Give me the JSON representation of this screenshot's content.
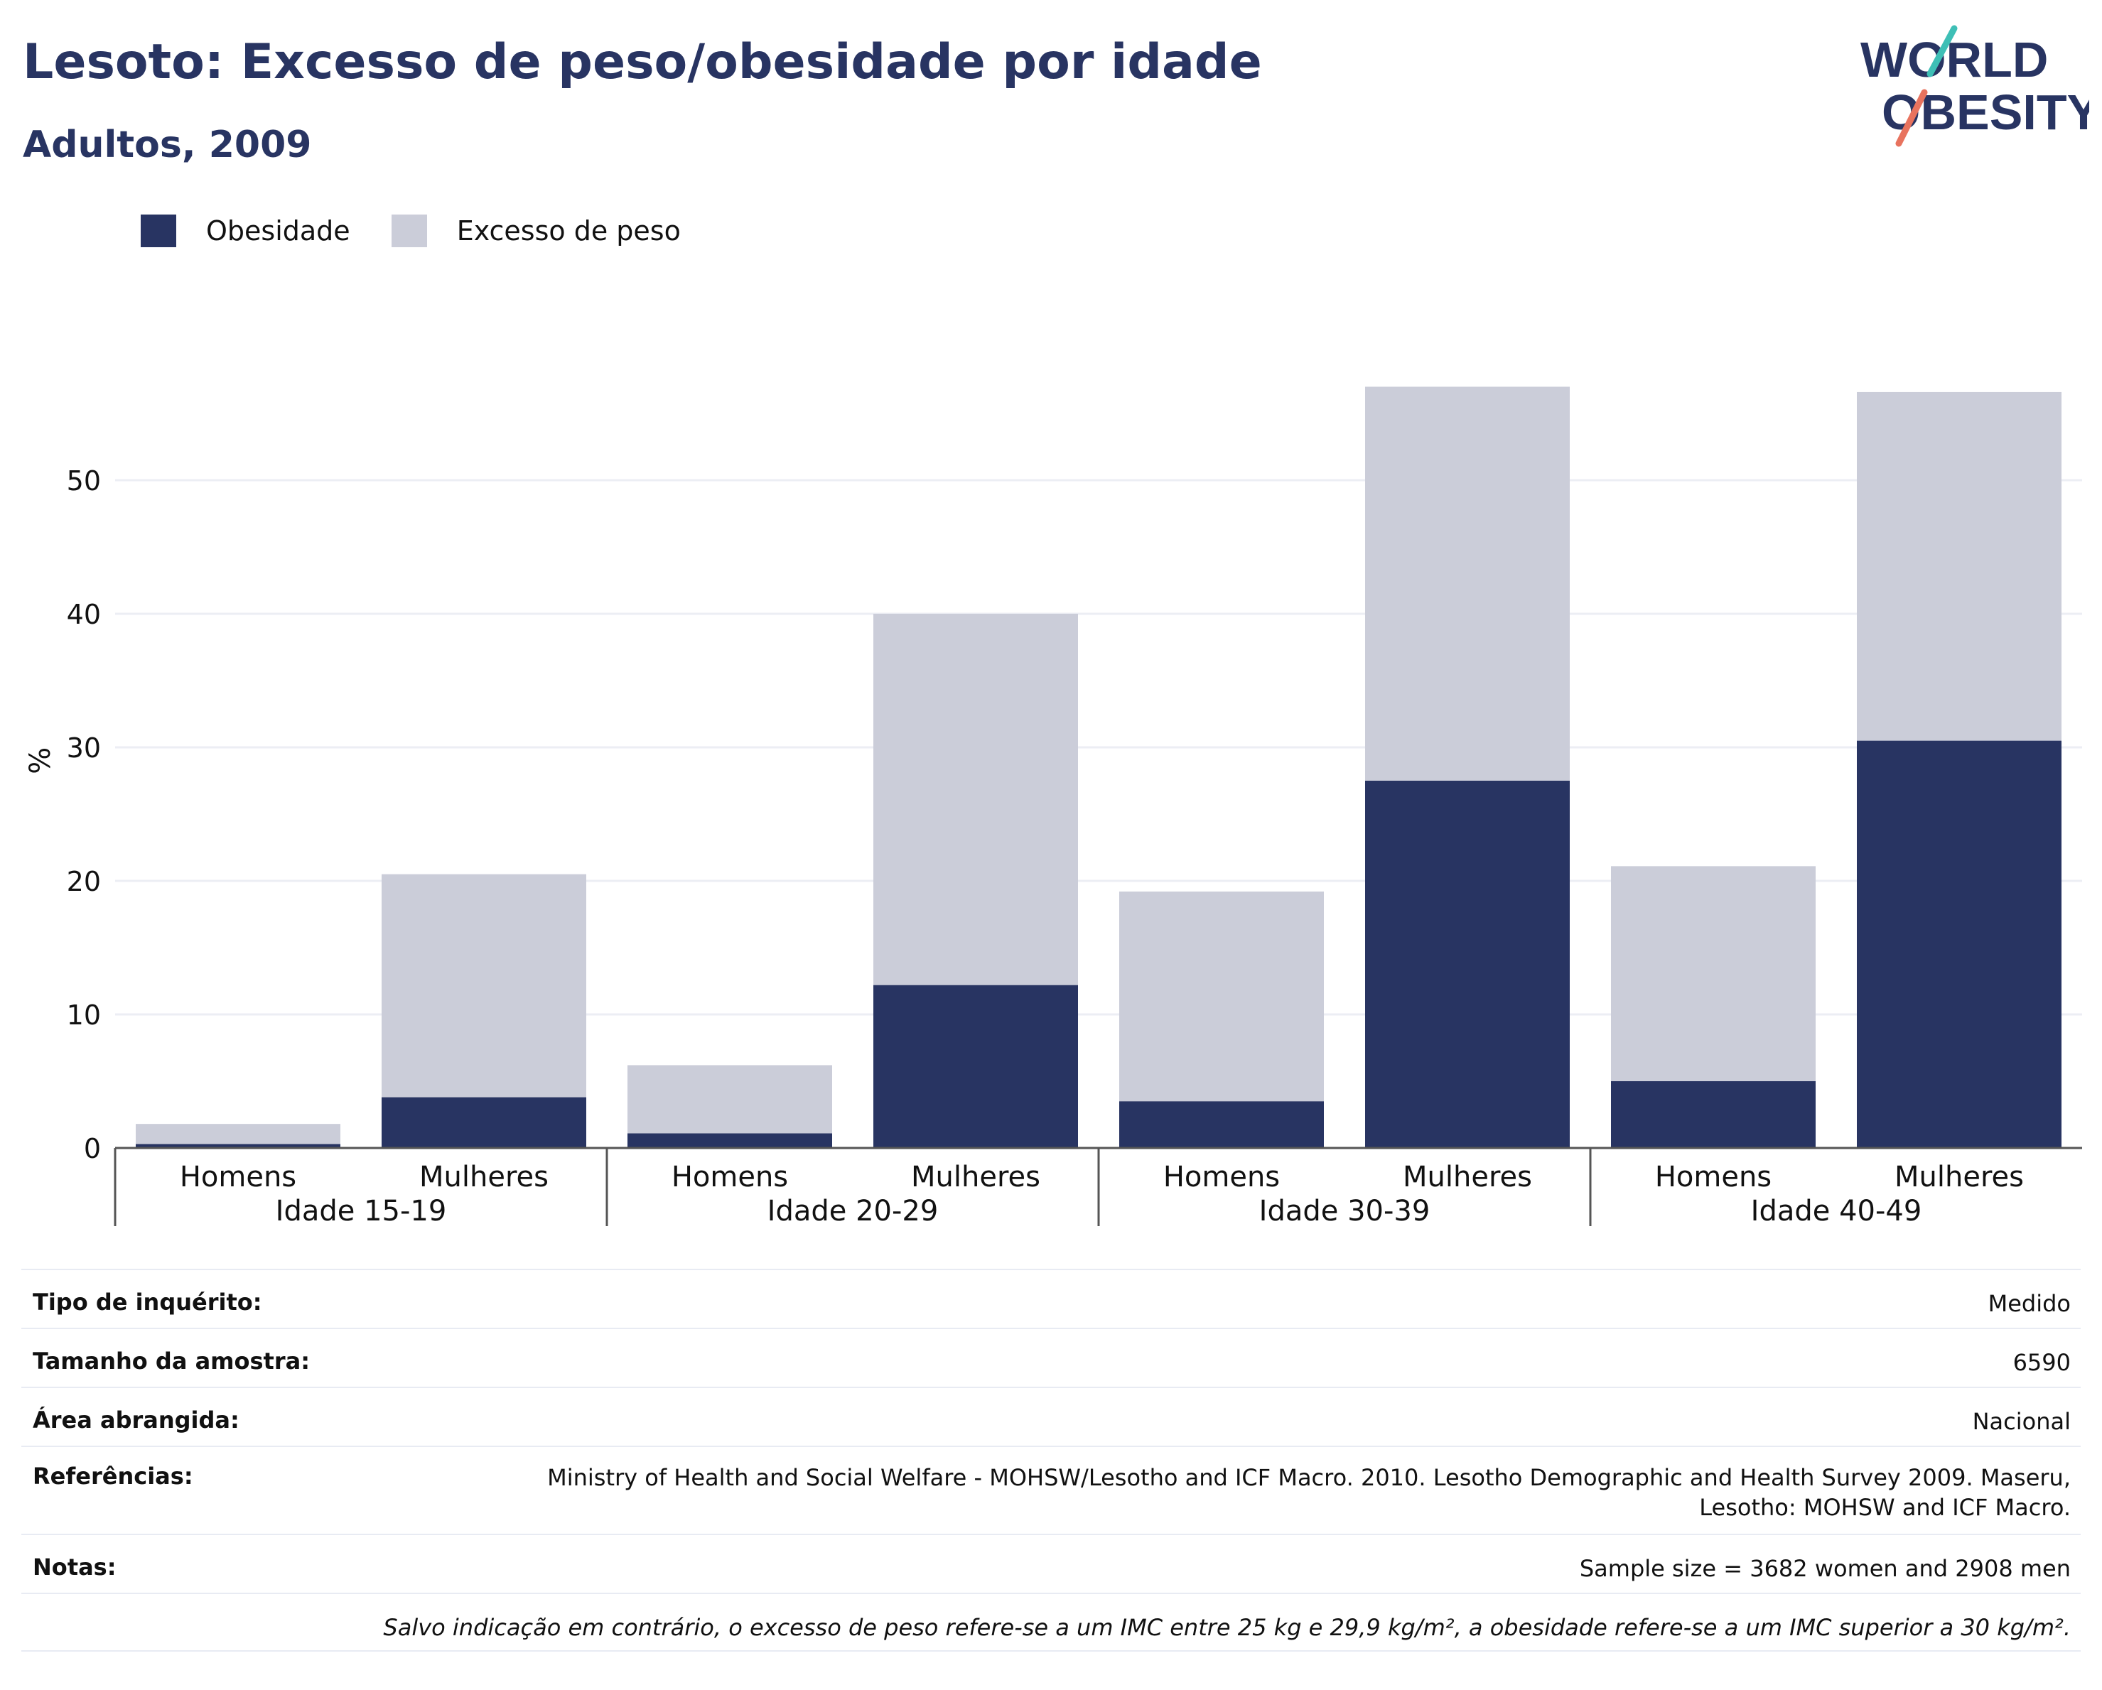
{
  "header": {
    "title": "Lesoto: Excesso de peso/obesidade por idade",
    "subtitle": "Adultos, 2009"
  },
  "logo": {
    "line1": "WORLD",
    "line2": "OBESITY"
  },
  "legend": [
    {
      "label": "Obesidade",
      "color": "#283462"
    },
    {
      "label": "Excesso de peso",
      "color": "#cbcdd9"
    }
  ],
  "chart_data": {
    "type": "bar",
    "stacked": true,
    "ylabel": "%",
    "ylim": [
      0,
      58
    ],
    "yticks": [
      0,
      10,
      20,
      30,
      40,
      50
    ],
    "grid": true,
    "legend_position": "top-left",
    "groups": [
      "Idade 15-19",
      "Idade 20-29",
      "Idade 30-39",
      "Idade 40-49"
    ],
    "categories": [
      "Homens",
      "Mulheres",
      "Homens",
      "Mulheres",
      "Homens",
      "Mulheres",
      "Homens",
      "Mulheres"
    ],
    "series": [
      {
        "name": "Obesidade",
        "color": "#283462",
        "values": [
          0.3,
          3.8,
          1.1,
          12.2,
          3.5,
          27.5,
          5.0,
          30.5
        ]
      },
      {
        "name": "Excesso de peso",
        "color": "#cbcdd9",
        "values": [
          1.5,
          16.7,
          5.1,
          27.8,
          15.7,
          29.5,
          16.1,
          26.1
        ]
      }
    ]
  },
  "info": {
    "survey_type_label": "Tipo de inquérito:",
    "survey_type_value": "Medido",
    "sample_size_label": "Tamanho da amostra:",
    "sample_size_value": "6590",
    "area_label": "Área abrangida:",
    "area_value": "Nacional",
    "references_label": "Referências:",
    "references_line1": "Ministry of Health and Social Welfare - MOHSW/Lesotho and ICF Macro. 2010. Lesotho Demographic and Health Survey 2009. Maseru,",
    "references_line2": "Lesotho: MOHSW and ICF Macro.",
    "notes_label": "Notas:",
    "notes_value": "Sample size = 3682 women and 2908 men",
    "footnote": "Salvo indicação em contrário, o excesso de peso refere-se a um IMC entre 25 kg e 29,9 kg/m², a obesidade refere-se a um IMC superior a 30 kg/m²."
  }
}
